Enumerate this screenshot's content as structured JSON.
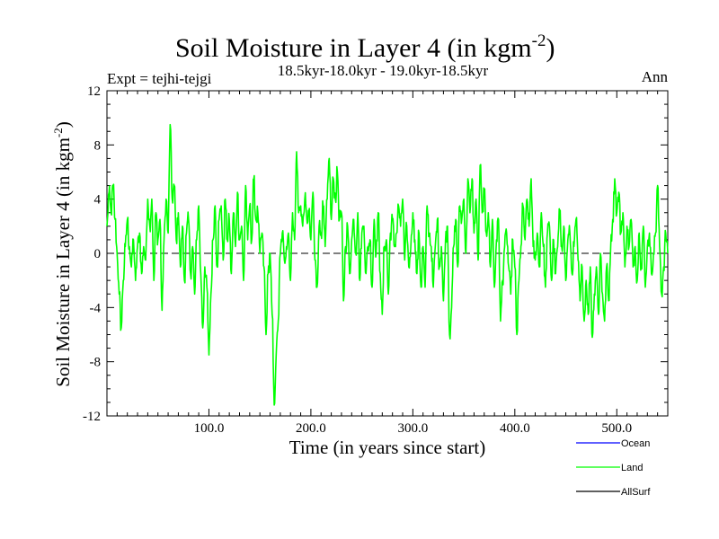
{
  "chart_data": {
    "type": "line",
    "title": "Soil Moisture in Layer 4 (in kgm",
    "title_sup": "-2",
    "title_end": ")",
    "subtitle_left": "Expt = tejhi-tejgi",
    "subtitle_center": "18.5kyr-18.0kyr - 19.0kyr-18.5kyr",
    "subtitle_right": "Ann",
    "xlabel": "Time (in years since start)",
    "ylabel": "Soil Moisture in Layer 4 (in kgm",
    "ylabel_sup": "-2",
    "ylabel_end": ")",
    "xlim": [
      0,
      550
    ],
    "ylim": [
      -12,
      12
    ],
    "xticks": [
      100,
      200,
      300,
      400,
      500
    ],
    "xtick_labels": [
      "100.0",
      "200.0",
      "300.0",
      "400.0",
      "500.0"
    ],
    "yticks": [
      -12,
      -8,
      -4,
      0,
      4,
      8,
      12
    ],
    "ytick_labels": [
      "-12",
      "-8",
      "-4",
      "0",
      "4",
      "8",
      "12"
    ],
    "zero_line": true,
    "legend": [
      {
        "name": "Ocean",
        "color": "#0000ff"
      },
      {
        "name": "Land",
        "color": "#00ff00"
      },
      {
        "name": "AllSurf",
        "color": "#000000"
      }
    ],
    "series": [
      {
        "name": "Land",
        "color": "#00ff00",
        "anchors": [
          [
            0,
            2.0
          ],
          [
            2,
            4.5
          ],
          [
            4,
            3.0
          ],
          [
            6,
            5.0
          ],
          [
            8,
            2.5
          ],
          [
            10,
            0.0
          ],
          [
            12,
            -3.0
          ],
          [
            14,
            -5.5
          ],
          [
            16,
            -2.0
          ],
          [
            18,
            0.5
          ],
          [
            20,
            2.5
          ],
          [
            22,
            0.5
          ],
          [
            24,
            -1.0
          ],
          [
            26,
            1.0
          ],
          [
            28,
            -2.0
          ],
          [
            30,
            0.5
          ],
          [
            32,
            1.5
          ],
          [
            34,
            -1.5
          ],
          [
            36,
            0.5
          ],
          [
            38,
            -0.5
          ],
          [
            40,
            4.0
          ],
          [
            42,
            2.0
          ],
          [
            44,
            4.0
          ],
          [
            46,
            -2.0
          ],
          [
            48,
            3.0
          ],
          [
            50,
            1.0
          ],
          [
            52,
            2.5
          ],
          [
            54,
            -4.2
          ],
          [
            56,
            1.0
          ],
          [
            58,
            4.0
          ],
          [
            60,
            1.5
          ],
          [
            62,
            9.5
          ],
          [
            64,
            4.0
          ],
          [
            66,
            5.0
          ],
          [
            68,
            1.0
          ],
          [
            70,
            3.0
          ],
          [
            72,
            -1.0
          ],
          [
            74,
            2.0
          ],
          [
            76,
            -2.0
          ],
          [
            78,
            1.5
          ],
          [
            80,
            2.5
          ],
          [
            82,
            -1.5
          ],
          [
            84,
            0.5
          ],
          [
            86,
            -3.0
          ],
          [
            88,
            1.0
          ],
          [
            90,
            3.5
          ],
          [
            92,
            -1.5
          ],
          [
            94,
            -5.5
          ],
          [
            96,
            -1.0
          ],
          [
            98,
            -2.5
          ],
          [
            100,
            -7.5
          ],
          [
            102,
            -3.0
          ],
          [
            104,
            1.0
          ],
          [
            106,
            3.5
          ],
          [
            108,
            -1.0
          ],
          [
            110,
            2.5
          ],
          [
            112,
            3.5
          ],
          [
            114,
            -0.5
          ],
          [
            116,
            4.0
          ],
          [
            118,
            1.0
          ],
          [
            120,
            2.5
          ],
          [
            122,
            -1.5
          ],
          [
            124,
            3.0
          ],
          [
            126,
            0.5
          ],
          [
            128,
            4.5
          ],
          [
            130,
            1.0
          ],
          [
            132,
            2.0
          ],
          [
            134,
            -2.0
          ],
          [
            136,
            5.0
          ],
          [
            138,
            1.0
          ],
          [
            140,
            3.5
          ],
          [
            142,
            1.0
          ],
          [
            144,
            5.5
          ],
          [
            146,
            2.5
          ],
          [
            148,
            3.0
          ],
          [
            150,
            0.0
          ],
          [
            152,
            1.5
          ],
          [
            154,
            -1.0
          ],
          [
            156,
            -6.0
          ],
          [
            158,
            -1.5
          ],
          [
            160,
            0.0
          ],
          [
            162,
            -4.5
          ],
          [
            164,
            -11.2
          ],
          [
            166,
            -7.5
          ],
          [
            168,
            -5.0
          ],
          [
            170,
            0.0
          ],
          [
            172,
            1.5
          ],
          [
            174,
            -0.5
          ],
          [
            176,
            0.5
          ],
          [
            178,
            1.5
          ],
          [
            180,
            -2.0
          ],
          [
            182,
            3.0
          ],
          [
            184,
            1.0
          ],
          [
            186,
            7.5
          ],
          [
            188,
            3.0
          ],
          [
            190,
            3.5
          ],
          [
            192,
            2.0
          ],
          [
            194,
            4.0
          ],
          [
            196,
            2.5
          ],
          [
            198,
            3.0
          ],
          [
            200,
            1.0
          ],
          [
            202,
            4.5
          ],
          [
            204,
            -0.5
          ],
          [
            206,
            -2.5
          ],
          [
            208,
            2.0
          ],
          [
            210,
            1.5
          ],
          [
            212,
            3.5
          ],
          [
            214,
            0.5
          ],
          [
            216,
            4.0
          ],
          [
            218,
            7.0
          ],
          [
            220,
            2.5
          ],
          [
            222,
            5.5
          ],
          [
            224,
            4.0
          ],
          [
            226,
            6.0
          ],
          [
            228,
            2.5
          ],
          [
            230,
            3.0
          ],
          [
            232,
            -3.5
          ],
          [
            234,
            0.5
          ],
          [
            236,
            2.0
          ],
          [
            238,
            -1.5
          ],
          [
            240,
            1.0
          ],
          [
            242,
            2.5
          ],
          [
            244,
            0.0
          ],
          [
            246,
            3.0
          ],
          [
            248,
            -2.0
          ],
          [
            250,
            1.5
          ],
          [
            252,
            2.0
          ],
          [
            254,
            -1.5
          ],
          [
            256,
            0.5
          ],
          [
            258,
            1.0
          ],
          [
            260,
            -2.5
          ],
          [
            262,
            2.5
          ],
          [
            264,
            0.0
          ],
          [
            266,
            3.0
          ],
          [
            268,
            -1.5
          ],
          [
            270,
            -4.5
          ],
          [
            272,
            0.5
          ],
          [
            274,
            1.0
          ],
          [
            276,
            -3.0
          ],
          [
            278,
            1.5
          ],
          [
            280,
            2.5
          ],
          [
            282,
            0.5
          ],
          [
            284,
            1.5
          ],
          [
            286,
            3.5
          ],
          [
            288,
            2.0
          ],
          [
            290,
            4.0
          ],
          [
            292,
            -0.5
          ],
          [
            294,
            2.0
          ],
          [
            296,
            -1.0
          ],
          [
            298,
            0.5
          ],
          [
            300,
            3.0
          ],
          [
            302,
            1.0
          ],
          [
            304,
            -1.5
          ],
          [
            306,
            1.5
          ],
          [
            308,
            -2.5
          ],
          [
            310,
            0.5
          ],
          [
            312,
            -2.5
          ],
          [
            314,
            3.5
          ],
          [
            316,
            1.5
          ],
          [
            318,
            0.5
          ],
          [
            320,
            -2.5
          ],
          [
            322,
            0.5
          ],
          [
            324,
            2.5
          ],
          [
            326,
            -1.0
          ],
          [
            328,
            0.5
          ],
          [
            330,
            -3.5
          ],
          [
            332,
            1.0
          ],
          [
            334,
            2.0
          ],
          [
            336,
            -6.0
          ],
          [
            338,
            -4.0
          ],
          [
            340,
            0.5
          ],
          [
            342,
            2.5
          ],
          [
            344,
            -1.0
          ],
          [
            346,
            3.5
          ],
          [
            348,
            2.5
          ],
          [
            350,
            4.0
          ],
          [
            352,
            0.0
          ],
          [
            354,
            5.5
          ],
          [
            356,
            3.0
          ],
          [
            358,
            5.5
          ],
          [
            360,
            1.5
          ],
          [
            362,
            4.0
          ],
          [
            364,
            -0.5
          ],
          [
            366,
            6.5
          ],
          [
            368,
            3.0
          ],
          [
            370,
            4.5
          ],
          [
            372,
            1.5
          ],
          [
            374,
            3.0
          ],
          [
            376,
            -1.0
          ],
          [
            378,
            2.5
          ],
          [
            380,
            -2.5
          ],
          [
            382,
            1.0
          ],
          [
            384,
            2.5
          ],
          [
            386,
            -5.0
          ],
          [
            388,
            -2.0
          ],
          [
            390,
            0.5
          ],
          [
            392,
            1.5
          ],
          [
            394,
            -1.0
          ],
          [
            396,
            -3.0
          ],
          [
            398,
            1.0
          ],
          [
            400,
            -1.0
          ],
          [
            402,
            -6.0
          ],
          [
            404,
            -2.0
          ],
          [
            406,
            0.5
          ],
          [
            408,
            3.5
          ],
          [
            410,
            1.0
          ],
          [
            412,
            4.0
          ],
          [
            414,
            2.0
          ],
          [
            416,
            5.5
          ],
          [
            418,
            0.5
          ],
          [
            420,
            -0.5
          ],
          [
            422,
            1.5
          ],
          [
            424,
            -1.0
          ],
          [
            426,
            3.0
          ],
          [
            428,
            0.5
          ],
          [
            430,
            -2.5
          ],
          [
            432,
            1.5
          ],
          [
            434,
            2.0
          ],
          [
            436,
            -2.0
          ],
          [
            438,
            1.0
          ],
          [
            440,
            -1.5
          ],
          [
            442,
            0.5
          ],
          [
            444,
            3.0
          ],
          [
            446,
            0.5
          ],
          [
            448,
            2.0
          ],
          [
            450,
            -2.0
          ],
          [
            452,
            1.0
          ],
          [
            454,
            1.5
          ],
          [
            456,
            -1.5
          ],
          [
            458,
            0.5
          ],
          [
            460,
            2.5
          ],
          [
            462,
            -0.5
          ],
          [
            464,
            -3.5
          ],
          [
            466,
            -1.0
          ],
          [
            468,
            -5.0
          ],
          [
            470,
            -2.0
          ],
          [
            472,
            -4.5
          ],
          [
            474,
            -1.0
          ],
          [
            476,
            -6.2
          ],
          [
            478,
            -3.0
          ],
          [
            480,
            -1.0
          ],
          [
            482,
            -4.5
          ],
          [
            484,
            0.0
          ],
          [
            486,
            -3.0
          ],
          [
            488,
            -5.0
          ],
          [
            490,
            -1.0
          ],
          [
            492,
            -3.5
          ],
          [
            494,
            0.5
          ],
          [
            496,
            2.5
          ],
          [
            498,
            5.5
          ],
          [
            500,
            3.0
          ],
          [
            502,
            4.5
          ],
          [
            504,
            1.5
          ],
          [
            506,
            3.0
          ],
          [
            508,
            -1.0
          ],
          [
            510,
            2.0
          ],
          [
            512,
            0.5
          ],
          [
            514,
            2.5
          ],
          [
            516,
            -1.0
          ],
          [
            518,
            0.5
          ],
          [
            520,
            -2.0
          ],
          [
            522,
            1.5
          ],
          [
            524,
            -1.0
          ],
          [
            526,
            2.0
          ],
          [
            528,
            -2.5
          ],
          [
            530,
            0.5
          ],
          [
            532,
            1.5
          ],
          [
            534,
            -1.5
          ],
          [
            536,
            0.0
          ],
          [
            538,
            1.5
          ],
          [
            540,
            5.0
          ],
          [
            542,
            0.5
          ],
          [
            544,
            -3.0
          ],
          [
            546,
            -1.0
          ],
          [
            548,
            1.5
          ],
          [
            550,
            0.0
          ]
        ]
      }
    ]
  }
}
